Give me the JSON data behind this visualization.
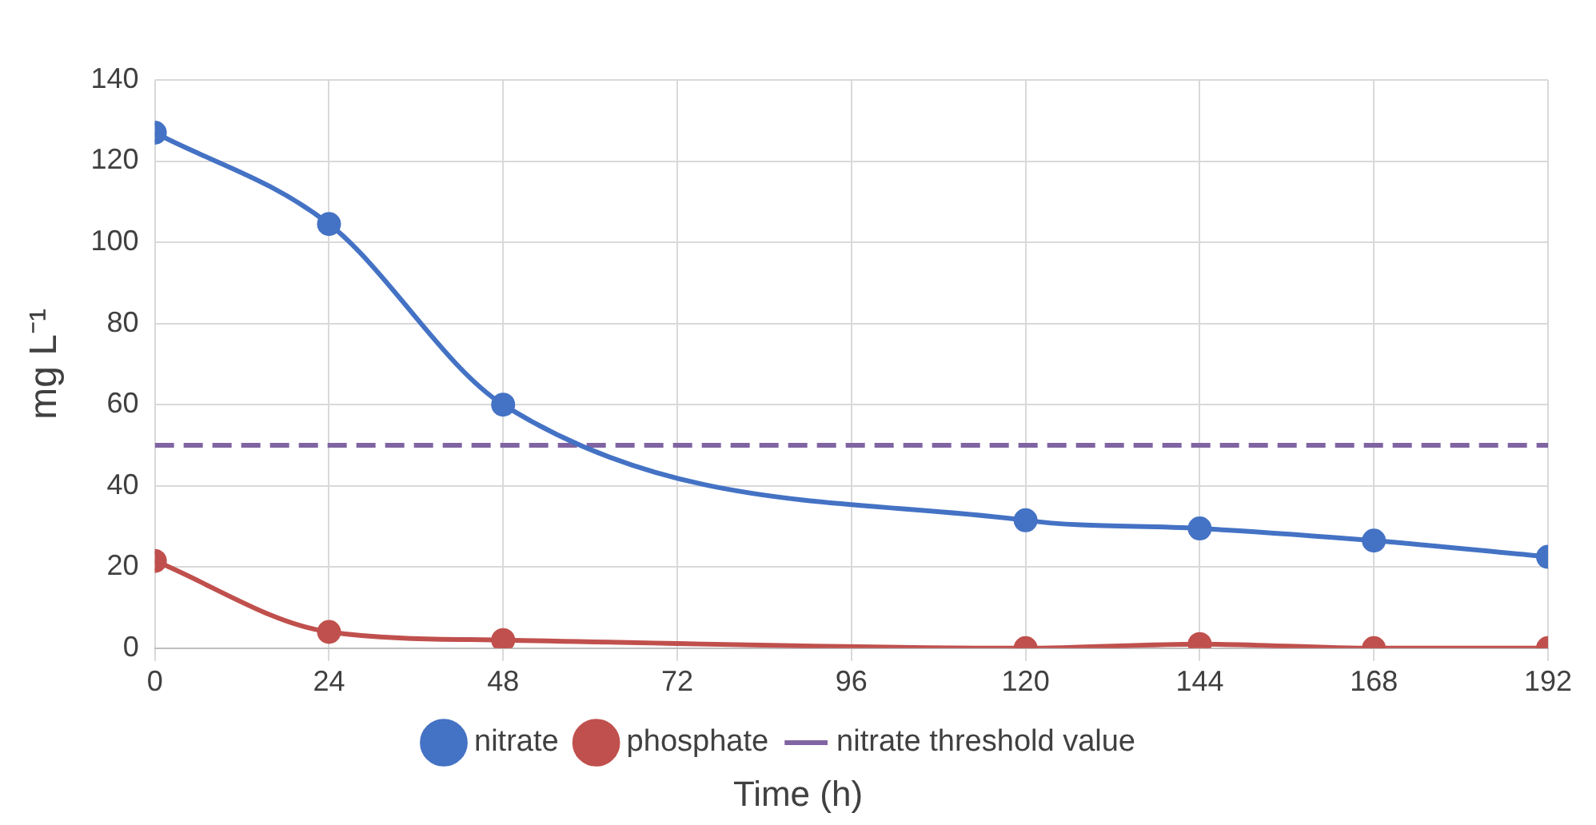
{
  "chart_data": {
    "type": "line",
    "xlabel": "Time (h)",
    "ylabel": "mg L⁻¹",
    "x": [
      0,
      24,
      48,
      120,
      144,
      168,
      192
    ],
    "series": [
      {
        "name": "nitrate",
        "color": "#4472c4",
        "values": [
          127,
          104.5,
          60,
          31.5,
          29.5,
          26.5,
          22.5
        ]
      },
      {
        "name": "phosphate",
        "color": "#c0504d",
        "values": [
          21.5,
          4,
          2,
          0,
          1,
          0,
          0
        ]
      }
    ],
    "ref_lines": [
      {
        "axis": "y",
        "value": 50,
        "label": "nitrate threshold value",
        "color": "#8064a2",
        "line_style": "dashed"
      }
    ],
    "xlim": [
      0,
      192
    ],
    "xticks": [
      0,
      24,
      48,
      72,
      96,
      120,
      144,
      168,
      192
    ],
    "ylim": [
      0,
      140
    ],
    "yticks": [
      0,
      20,
      40,
      60,
      80,
      100,
      120,
      140
    ],
    "grid": true,
    "legend": "bottom",
    "marker": "circle",
    "line_style": "solid"
  }
}
